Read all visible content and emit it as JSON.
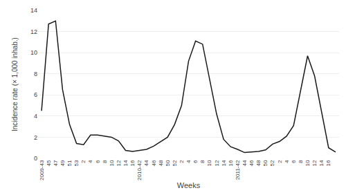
{
  "chart_data": {
    "type": "line",
    "xlabel": "Weeks",
    "ylabel": "Incidence rate (× 1,000 inhab.)",
    "color": "#1a1a1a",
    "ylim": [
      0,
      14
    ],
    "yticks": [
      0,
      2,
      4,
      6,
      8,
      10,
      12,
      14
    ],
    "grid": true,
    "categories": [
      "2009-43",
      "45",
      "47",
      "49",
      "51",
      "53",
      "2",
      "4",
      "6",
      "8",
      "10",
      "12",
      "14",
      "16",
      "2010-42",
      "44",
      "46",
      "48",
      "50",
      "52",
      "2",
      "4",
      "6",
      "8",
      "10",
      "12",
      "14",
      "16",
      "2011-42",
      "44",
      "46",
      "48",
      "50",
      "52",
      "2",
      "4",
      "6",
      "8",
      "10",
      "12",
      "14",
      "16",
      null
    ],
    "values": [
      4.5,
      12.7,
      13.0,
      6.5,
      3.2,
      1.4,
      1.3,
      2.2,
      2.2,
      2.1,
      2.0,
      1.65,
      0.75,
      0.65,
      0.75,
      0.85,
      1.15,
      1.55,
      2.0,
      3.2,
      5.0,
      9.2,
      11.1,
      10.8,
      7.5,
      4.2,
      1.8,
      1.1,
      0.85,
      0.55,
      0.6,
      0.65,
      0.8,
      1.35,
      1.6,
      2.1,
      3.1,
      6.5,
      9.7,
      7.8,
      4.5,
      1.0,
      0.6
    ]
  }
}
